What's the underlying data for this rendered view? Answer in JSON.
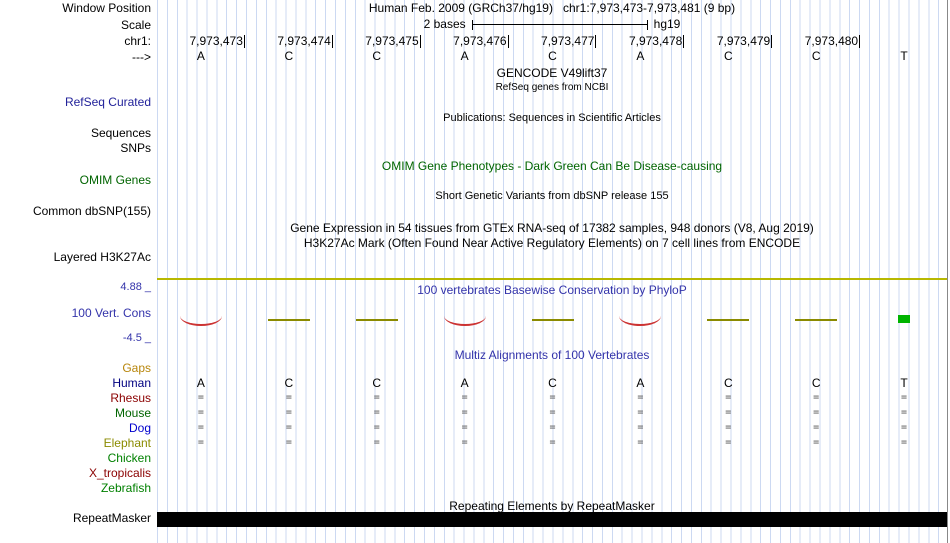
{
  "colors": {
    "guideline": "#ccd9f2",
    "track_title_blue": "#3333aa",
    "omim_green": "#006400",
    "h3k27ac_line": "#b8b800",
    "repeat_bar": "#000000"
  },
  "left_labels": [
    {
      "text": "Window Position",
      "color": "#000000"
    },
    {
      "text": "Scale",
      "color": "#000000"
    },
    {
      "text": "chr1:",
      "color": "#000000"
    },
    {
      "text": "--->",
      "color": "#000000"
    },
    {
      "text": "RefSeq Curated",
      "color": "#22229a"
    },
    {
      "text": "Sequences",
      "color": "#000000"
    },
    {
      "text": "SNPs",
      "color": "#000000"
    },
    {
      "text": "OMIM Genes",
      "color": "#006400"
    },
    {
      "text": "Common dbSNP(155)",
      "color": "#000000"
    },
    {
      "text": "Layered H3K27Ac",
      "color": "#000000"
    },
    {
      "text": "4.88 _",
      "color": "#3333aa"
    },
    {
      "text": "100 Vert. Cons",
      "color": "#3333aa"
    },
    {
      "text": "-4.5 _",
      "color": "#3333aa"
    },
    {
      "text": "Gaps",
      "color": "#b8860b"
    },
    {
      "text": "Human",
      "color": "#000080"
    },
    {
      "text": "Rhesus",
      "color": "#8b0000"
    },
    {
      "text": "Mouse",
      "color": "#006400"
    },
    {
      "text": "Dog",
      "color": "#0000cd"
    },
    {
      "text": "Elephant",
      "color": "#8b8b00"
    },
    {
      "text": "Chicken",
      "color": "#008000"
    },
    {
      "text": "X_tropicalis",
      "color": "#8b0000"
    },
    {
      "text": "Zebrafish",
      "color": "#008000"
    },
    {
      "text": "RepeatMasker",
      "color": "#000000"
    }
  ],
  "center_messages": [
    {
      "text": "Human Feb. 2009 (GRCh37/hg19)   chr1:7,973,473-7,973,481 (9 bp)",
      "color": "#000000"
    },
    {
      "text": "GENCODE V49lift37",
      "color": "#000000"
    },
    {
      "text": "RefSeq genes from NCBI",
      "color": "#000000"
    },
    {
      "text": "Publications: Sequences in Scientific Articles",
      "color": "#000000"
    },
    {
      "text": "OMIM Gene Phenotypes - Dark Green Can Be Disease-causing",
      "color": "#006400"
    },
    {
      "text": "Short Genetic Variants from dbSNP release 155",
      "color": "#000000"
    },
    {
      "text": "Gene Expression in 54 tissues from GTEx RNA-seq of 17382 samples, 948 donors (V8, Aug 2019)",
      "color": "#000000"
    },
    {
      "text": "H3K27Ac Mark (Often Found Near Active Regulatory Elements) on 7 cell lines from ENCODE",
      "color": "#000000"
    },
    {
      "text": "100 vertebrates Basewise Conservation by PhyloP",
      "color": "#3333aa"
    },
    {
      "text": "Multiz Alignments of 100 Vertebrates",
      "color": "#3333aa"
    },
    {
      "text": "Repeating Elements by RepeatMasker",
      "color": "#000000"
    }
  ],
  "ruler": {
    "scale_label": "2 bases",
    "assembly": "hg19",
    "coordinates": [
      "7,973,473",
      "7,973,474",
      "7,973,475",
      "7,973,476",
      "7,973,477",
      "7,973,478",
      "7,973,479",
      "7,973,480"
    ],
    "bases": [
      "A",
      "C",
      "C",
      "A",
      "C",
      "A",
      "C",
      "C",
      "T"
    ]
  },
  "conservation": {
    "max_label": "4.88 _",
    "min_label": "-4.5 _",
    "marks": [
      {
        "base": 0,
        "type": "dip",
        "color": "#cc3333"
      },
      {
        "base": 1,
        "type": "flat",
        "color": "#8a8a00"
      },
      {
        "base": 2,
        "type": "flat",
        "color": "#8a8a00"
      },
      {
        "base": 3,
        "type": "dip",
        "color": "#cc3333"
      },
      {
        "base": 4,
        "type": "flat",
        "color": "#8a8a00"
      },
      {
        "base": 5,
        "type": "dip",
        "color": "#cc3333"
      },
      {
        "base": 6,
        "type": "flat",
        "color": "#8a8a00"
      },
      {
        "base": 7,
        "type": "flat",
        "color": "#8a8a00"
      },
      {
        "base": 8,
        "type": "block",
        "color": "#00b400"
      }
    ]
  },
  "alignment": {
    "human_bases": [
      "A",
      "C",
      "C",
      "A",
      "C",
      "A",
      "C",
      "C",
      "T"
    ],
    "rows": [
      {
        "species": "Rhesus",
        "marks": [
          "=",
          "=",
          "=",
          "=",
          "=",
          "=",
          "=",
          "=",
          "="
        ]
      },
      {
        "species": "Mouse",
        "marks": [
          "=",
          "=",
          "=",
          "=",
          "=",
          "=",
          "=",
          "=",
          "="
        ]
      },
      {
        "species": "Dog",
        "marks": [
          "=",
          "=",
          "=",
          "=",
          "=",
          "=",
          "=",
          "=",
          "="
        ]
      },
      {
        "species": "Elephant",
        "marks": [
          "=",
          "=",
          "=",
          "=",
          "=",
          "=",
          "=",
          "=",
          "="
        ]
      }
    ]
  }
}
